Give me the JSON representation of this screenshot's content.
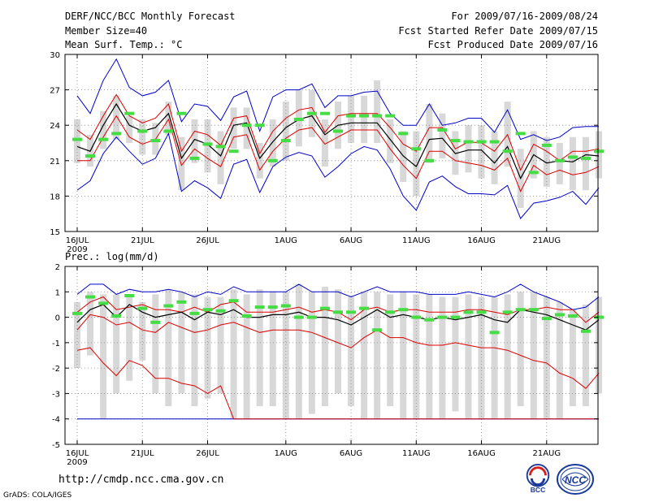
{
  "header": {
    "title": "DERF/NCC/BCC Monthly Forecast",
    "member_size": "Member Size=40",
    "variable": "Mean Surf. Temp.: °C",
    "period": "For 2009/07/16-2009/08/24",
    "started": "Fcst Started Refer Date 2009/07/15",
    "produced": "Fcst Produced Date 2009/07/16"
  },
  "footer": {
    "url": "http://cmdp.ncc.cma.gov.cn",
    "credit": "GrADS: COLA/IGES",
    "logo_left_text": "BCC",
    "logo_right_text": "NCC"
  },
  "colors": {
    "ensemble_range": "#0000cc",
    "spread": "#dd0000",
    "mean": "#000000",
    "climatology": "#44dd44",
    "box": "#d8d8d8",
    "grid": "#888888"
  },
  "chart_data": [
    {
      "type": "line",
      "title": "Mean Surf. Temp.: °C",
      "ylim": [
        15,
        30
      ],
      "yticks": [
        "15",
        "18",
        "21",
        "24",
        "27",
        "30"
      ],
      "xticks": [
        {
          "day": 0,
          "label": "16JUL",
          "sub": "2009"
        },
        {
          "day": 5,
          "label": "21JUL"
        },
        {
          "day": 10,
          "label": "26JUL"
        },
        {
          "day": 16,
          "label": "1AUG"
        },
        {
          "day": 21,
          "label": "6AUG"
        },
        {
          "day": 26,
          "label": "11AUG"
        },
        {
          "day": 31,
          "label": "16AUG"
        },
        {
          "day": 36,
          "label": "21AUG"
        }
      ],
      "series": [
        {
          "name": "max",
          "values": [
            26.5,
            25.0,
            27.8,
            29.6,
            27.2,
            26.5,
            26.8,
            27.8,
            24.3,
            25.8,
            25.6,
            24.4,
            26.4,
            26.9,
            23.5,
            26.4,
            27.0,
            27.0,
            27.5,
            25.5,
            26.5,
            26.5,
            26.8,
            26.9,
            25.0,
            24.0,
            24.0,
            25.8,
            24.0,
            24.2,
            24.6,
            24.6,
            23.4,
            25.3,
            22.8,
            23.2,
            22.7,
            23.0,
            23.8,
            23.9,
            23.9
          ]
        },
        {
          "name": "upper",
          "values": [
            23.6,
            22.8,
            24.8,
            26.6,
            24.8,
            24.2,
            24.6,
            25.8,
            21.8,
            23.5,
            23.2,
            22.3,
            24.6,
            24.8,
            21.6,
            23.5,
            24.6,
            25.3,
            25.5,
            23.4,
            24.8,
            25.0,
            25.0,
            25.0,
            23.8,
            22.4,
            21.8,
            23.8,
            23.8,
            22.0,
            22.6,
            22.5,
            21.8,
            23.2,
            20.2,
            22.4,
            21.8,
            21.0,
            21.8,
            21.8,
            22.0
          ]
        },
        {
          "name": "mean",
          "values": [
            22.2,
            21.8,
            24.0,
            25.8,
            24.0,
            23.5,
            23.8,
            25.0,
            21.2,
            22.8,
            22.4,
            21.4,
            24.0,
            24.2,
            21.2,
            22.6,
            23.8,
            24.5,
            24.8,
            23.2,
            24.0,
            24.2,
            24.2,
            24.2,
            22.8,
            21.4,
            20.5,
            22.8,
            22.9,
            21.6,
            21.9,
            21.9,
            20.8,
            22.2,
            19.5,
            21.5,
            20.8,
            21.0,
            20.9,
            21.5,
            21.4
          ]
        },
        {
          "name": "lower",
          "values": [
            21.0,
            21.0,
            23.0,
            24.8,
            23.0,
            22.4,
            22.8,
            24.5,
            20.6,
            22.0,
            21.2,
            20.5,
            23.0,
            23.2,
            20.2,
            21.8,
            22.9,
            23.6,
            23.8,
            22.4,
            23.0,
            23.6,
            23.6,
            23.6,
            22.0,
            20.6,
            19.5,
            21.8,
            21.8,
            21.0,
            20.8,
            20.6,
            20.2,
            21.2,
            18.4,
            20.6,
            19.8,
            20.2,
            19.8,
            20.0,
            20.5
          ]
        },
        {
          "name": "min",
          "values": [
            18.5,
            19.3,
            21.6,
            23.0,
            21.8,
            20.7,
            21.2,
            23.3,
            18.4,
            19.3,
            18.7,
            17.8,
            20.7,
            21.1,
            18.3,
            20.5,
            21.3,
            21.7,
            21.4,
            19.6,
            20.5,
            21.6,
            22.2,
            21.9,
            20.3,
            18.0,
            16.8,
            19.2,
            19.7,
            18.8,
            18.2,
            18.2,
            18.1,
            18.9,
            16.1,
            17.4,
            17.6,
            17.9,
            18.4,
            17.3,
            18.7
          ]
        },
        {
          "name": "climatology",
          "values": [
            22.8,
            21.4,
            22.8,
            23.3,
            25.0,
            23.5,
            22.7,
            23.5,
            25.0,
            21.2,
            22.4,
            22.2,
            21.8,
            24.0,
            24.0,
            21.0,
            22.7,
            24.5,
            25.0,
            25.0,
            23.5,
            24.8,
            24.8,
            24.8,
            24.8,
            23.3,
            22.0,
            21.0,
            23.6,
            22.7,
            22.6,
            22.6,
            22.6,
            21.8,
            23.3,
            20.0,
            22.3,
            21.0,
            21.3,
            21.2,
            21.8
          ]
        },
        {
          "name": "box_low",
          "values": [
            20.8,
            20.5,
            22.0,
            22.8,
            22.5,
            21.5,
            21.5,
            23.2,
            18.5,
            20.8,
            20.0,
            19.0,
            22.0,
            22.0,
            19.5,
            20.5,
            21.0,
            22.2,
            23.0,
            20.5,
            22.0,
            22.5,
            22.5,
            22.5,
            20.8,
            19.2,
            18.0,
            20.8,
            21.2,
            19.8,
            20.0,
            19.5,
            19.0,
            20.5,
            17.0,
            19.5,
            18.8,
            19.0,
            18.5,
            18.5,
            19.5
          ]
        },
        {
          "name": "box_high",
          "values": [
            24.5,
            23.2,
            25.2,
            26.5,
            24.8,
            24.5,
            24.2,
            26.0,
            23.0,
            24.5,
            24.5,
            23.5,
            25.5,
            25.5,
            22.5,
            24.5,
            26.0,
            27.0,
            27.0,
            24.5,
            26.0,
            26.5,
            26.5,
            27.8,
            24.5,
            23.5,
            23.5,
            25.8,
            25.0,
            23.5,
            24.0,
            24.0,
            23.5,
            26.0,
            22.0,
            23.5,
            23.0,
            22.5,
            23.0,
            23.0,
            23.5
          ]
        }
      ]
    },
    {
      "type": "line",
      "title": "Prec.: log(mm/d)",
      "ylim": [
        -5,
        2
      ],
      "yticks": [
        "-5",
        "-4",
        "-3",
        "-2",
        "-1",
        "0",
        "1",
        "2"
      ],
      "xticks": [
        {
          "day": 0,
          "label": "16JUL",
          "sub": "2009"
        },
        {
          "day": 5,
          "label": "21JUL"
        },
        {
          "day": 10,
          "label": "26JUL"
        },
        {
          "day": 16,
          "label": "1AUG"
        },
        {
          "day": 21,
          "label": "6AUG"
        },
        {
          "day": 26,
          "label": "11AUG"
        },
        {
          "day": 31,
          "label": "16AUG"
        },
        {
          "day": 36,
          "label": "21AUG"
        }
      ],
      "series": [
        {
          "name": "max",
          "values": [
            0.9,
            1.3,
            1.3,
            0.9,
            1.1,
            1.0,
            1.0,
            1.1,
            1.0,
            0.8,
            1.0,
            0.9,
            1.2,
            1.0,
            1.0,
            1.0,
            1.0,
            1.3,
            1.0,
            1.0,
            1.0,
            0.8,
            1.0,
            1.2,
            1.0,
            1.0,
            1.0,
            0.9,
            0.9,
            0.9,
            1.0,
            0.9,
            0.8,
            1.0,
            1.3,
            1.0,
            0.8,
            0.6,
            0.3,
            0.4,
            0.8
          ]
        },
        {
          "name": "upper",
          "values": [
            0.2,
            0.6,
            0.8,
            0.3,
            0.4,
            0.5,
            0.3,
            0.3,
            0.2,
            0.4,
            0.2,
            0.5,
            0.6,
            0.2,
            0.2,
            0.2,
            0.3,
            0.4,
            0.2,
            0.3,
            0.2,
            -0.1,
            0.3,
            0.4,
            0.2,
            0.3,
            0.3,
            0.2,
            0.2,
            0.2,
            0.3,
            0.3,
            0.2,
            0.1,
            0.3,
            0.3,
            0.4,
            0.3,
            0.3,
            -0.2,
            0.2
          ]
        },
        {
          "name": "mean",
          "values": [
            -0.2,
            0.3,
            0.5,
            0.0,
            0.5,
            0.2,
            0.0,
            0.1,
            0.2,
            -0.1,
            0.2,
            0.1,
            0.3,
            0.0,
            0.0,
            0.1,
            0.1,
            0.2,
            0.0,
            0.0,
            -0.1,
            -0.3,
            0.0,
            0.3,
            0.0,
            0.1,
            0.0,
            -0.1,
            0.0,
            -0.1,
            0.0,
            0.1,
            -0.1,
            -0.2,
            0.3,
            0.2,
            0.1,
            -0.1,
            -0.3,
            -0.5,
            -0.1
          ]
        },
        {
          "name": "lower",
          "values": [
            -0.5,
            0.1,
            0.0,
            -0.3,
            -0.2,
            -0.5,
            -0.6,
            -0.2,
            -0.4,
            -0.6,
            -0.5,
            -0.3,
            -0.2,
            -0.4,
            -0.6,
            -0.5,
            -0.5,
            -0.5,
            -0.6,
            -0.8,
            -1.0,
            -1.2,
            -0.8,
            -0.5,
            -0.8,
            -0.8,
            -1.0,
            -1.1,
            -1.1,
            -1.0,
            -1.1,
            -1.2,
            -1.2,
            -1.3,
            -1.5,
            -1.7,
            -1.8,
            -2.2,
            -2.4,
            -2.8,
            -2.2
          ]
        },
        {
          "name": "min",
          "values": [
            -4.0,
            -4.0,
            -4.0,
            -4.0,
            -4.0,
            -4.0,
            -4.0,
            -4.0,
            -4.0,
            -4.0,
            -4.0,
            -4.0,
            -4.0,
            -4.0,
            -4.0,
            -4.0,
            -4.0,
            -4.0,
            -4.0,
            -4.0,
            -4.0,
            -4.0,
            -4.0,
            -4.0,
            -4.0,
            -4.0,
            -4.0,
            -4.0,
            -4.0,
            -4.0,
            -4.0,
            -4.0,
            -4.0,
            -4.0,
            -4.0,
            -4.0,
            -4.0,
            -4.0,
            -4.0,
            -4.0,
            -4.0
          ]
        },
        {
          "name": "lower_tail",
          "values": [
            -1.3,
            -1.2,
            -1.8,
            -2.3,
            -1.7,
            -1.9,
            -2.4,
            -2.4,
            -2.6,
            -2.7,
            -3.0,
            -2.7,
            -4.0,
            -4.0,
            -4.0,
            -4.0,
            -4.0,
            -4.0,
            -4.0,
            -4.0,
            -4.0,
            -4.0,
            -4.0,
            -4.0,
            -4.0,
            -4.0,
            -4.0,
            -4.0,
            -4.0,
            -4.0,
            -4.0,
            -4.0,
            -4.0,
            -4.0,
            -4.0,
            -4.0,
            -4.0,
            -4.0,
            -4.0,
            -4.0,
            -4.0
          ]
        },
        {
          "name": "climatology",
          "values": [
            0.15,
            0.8,
            0.55,
            0.05,
            0.85,
            0.35,
            -0.2,
            0.45,
            0.6,
            0.15,
            0.3,
            0.25,
            0.65,
            0.05,
            0.4,
            0.4,
            0.45,
            0.0,
            0.0,
            0.35,
            0.2,
            0.2,
            0.35,
            -0.5,
            0.2,
            0.3,
            0.0,
            -0.1,
            0.0,
            0.0,
            0.2,
            0.2,
            -0.6,
            0.2,
            0.3,
            0.3,
            -0.05,
            0.1,
            0.05,
            -0.55,
            0.0
          ]
        },
        {
          "name": "box_low",
          "values": [
            -2.0,
            -1.5,
            -4.0,
            -3.0,
            -2.5,
            -1.7,
            -3.0,
            -3.5,
            -3.0,
            -3.5,
            -3.2,
            -3.0,
            -4.0,
            -4.0,
            -3.5,
            -3.5,
            -4.0,
            -4.0,
            -3.8,
            -3.5,
            -3.0,
            -3.5,
            -4.0,
            -4.0,
            -3.5,
            -4.0,
            -4.0,
            -4.0,
            -4.0,
            -3.7,
            -4.0,
            -4.0,
            -4.0,
            -4.0,
            -3.5,
            -4.0,
            -4.0,
            -4.0,
            -3.5,
            -3.5,
            -3.0
          ]
        },
        {
          "name": "box_high",
          "values": [
            0.6,
            1.0,
            0.9,
            0.9,
            0.9,
            0.6,
            0.9,
            1.1,
            1.0,
            0.9,
            0.8,
            0.8,
            1.1,
            0.9,
            1.1,
            1.0,
            1.0,
            1.3,
            1.0,
            1.2,
            1.1,
            0.8,
            1.0,
            1.0,
            0.9,
            1.0,
            0.9,
            0.9,
            0.8,
            0.8,
            0.9,
            0.8,
            0.8,
            0.9,
            1.0,
            1.0,
            0.8,
            0.6,
            0.3,
            0.5,
            0.8
          ]
        }
      ]
    }
  ]
}
